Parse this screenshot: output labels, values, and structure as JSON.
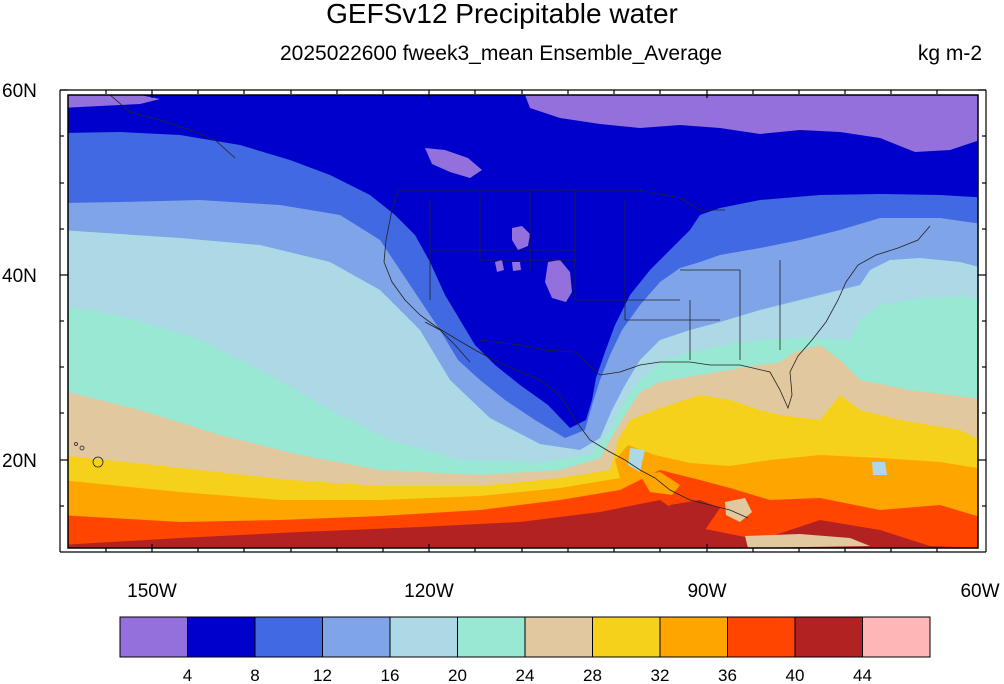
{
  "title": "GEFSv12 Precipitable water",
  "subtitle": "2025022600 fweek3_mean Ensemble_Average",
  "units": "kg m-2",
  "lat_labels": [
    "60N",
    "40N",
    "20N"
  ],
  "lon_labels": [
    "150W",
    "120W",
    "90W",
    "60W"
  ],
  "colorbar": {
    "colors": [
      "#9370db",
      "#0000cd",
      "#4169e1",
      "#7fa4e8",
      "#add8e6",
      "#98e8d4",
      "#e2c89e",
      "#f5d11b",
      "#ffa500",
      "#ff4500",
      "#b22222",
      "#ffb6b6"
    ],
    "labels": [
      "4",
      "8",
      "12",
      "16",
      "20",
      "24",
      "28",
      "32",
      "36",
      "40",
      "44"
    ]
  }
}
